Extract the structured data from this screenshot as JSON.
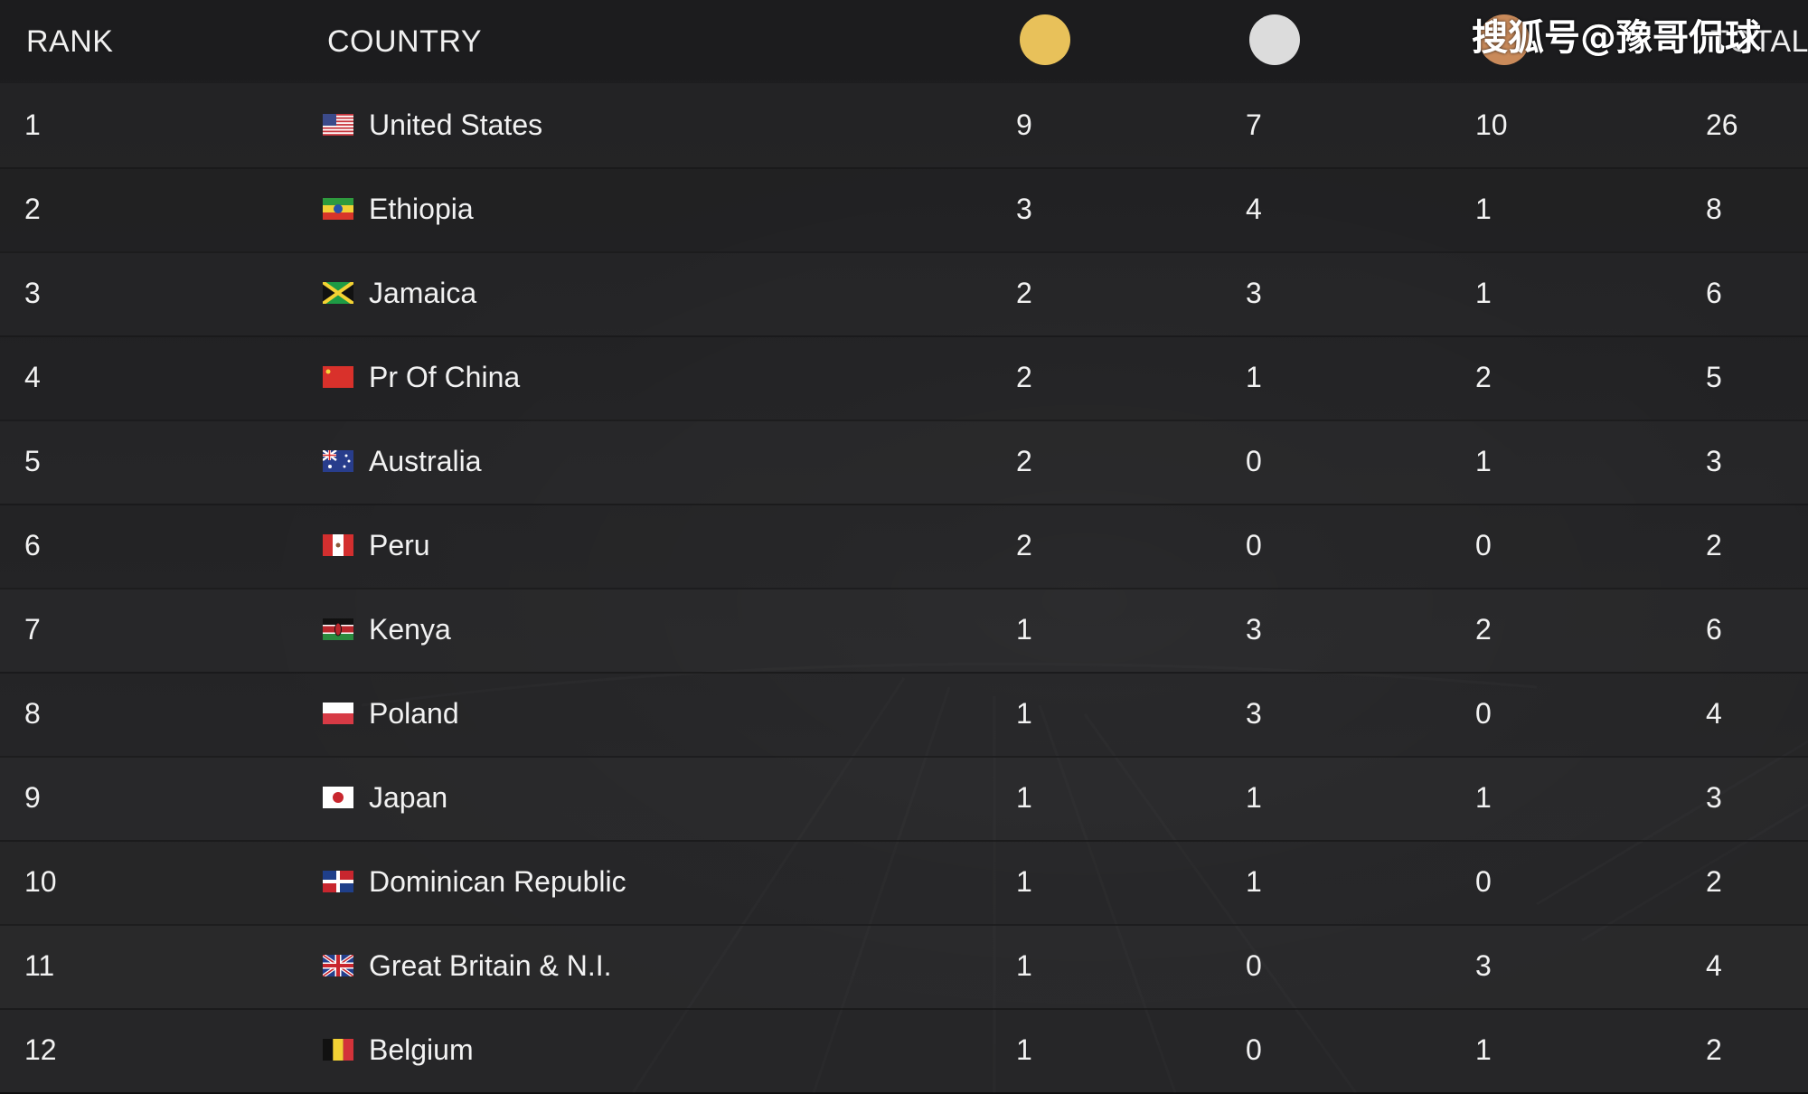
{
  "header": {
    "rank_label": "RANK",
    "country_label": "COUNTRY",
    "total_label": "TOTAL",
    "medals": [
      {
        "name": "gold-medal-icon",
        "color": "#e8c15a"
      },
      {
        "name": "silver-medal-icon",
        "color": "#dcdcdc"
      },
      {
        "name": "bronze-medal-icon",
        "color": "#c98a5a"
      }
    ]
  },
  "watermark": "搜狐号@豫哥侃球",
  "rows": [
    {
      "rank": "1",
      "country": "United States",
      "flag": "us-flag-icon",
      "gold": "9",
      "silver": "7",
      "bronze": "10",
      "total": "26"
    },
    {
      "rank": "2",
      "country": "Ethiopia",
      "flag": "ethiopia-flag-icon",
      "gold": "3",
      "silver": "4",
      "bronze": "1",
      "total": "8"
    },
    {
      "rank": "3",
      "country": "Jamaica",
      "flag": "jamaica-flag-icon",
      "gold": "2",
      "silver": "3",
      "bronze": "1",
      "total": "6"
    },
    {
      "rank": "4",
      "country": "Pr Of China",
      "flag": "china-flag-icon",
      "gold": "2",
      "silver": "1",
      "bronze": "2",
      "total": "5"
    },
    {
      "rank": "5",
      "country": "Australia",
      "flag": "australia-flag-icon",
      "gold": "2",
      "silver": "0",
      "bronze": "1",
      "total": "3"
    },
    {
      "rank": "6",
      "country": "Peru",
      "flag": "peru-flag-icon",
      "gold": "2",
      "silver": "0",
      "bronze": "0",
      "total": "2"
    },
    {
      "rank": "7",
      "country": "Kenya",
      "flag": "kenya-flag-icon",
      "gold": "1",
      "silver": "3",
      "bronze": "2",
      "total": "6"
    },
    {
      "rank": "8",
      "country": "Poland",
      "flag": "poland-flag-icon",
      "gold": "1",
      "silver": "3",
      "bronze": "0",
      "total": "4"
    },
    {
      "rank": "9",
      "country": "Japan",
      "flag": "japan-flag-icon",
      "gold": "1",
      "silver": "1",
      "bronze": "1",
      "total": "3"
    },
    {
      "rank": "10",
      "country": "Dominican Republic",
      "flag": "dominican-republic-flag-icon",
      "gold": "1",
      "silver": "1",
      "bronze": "0",
      "total": "2"
    },
    {
      "rank": "11",
      "country": "Great Britain & N.I.",
      "flag": "great-britain-flag-icon",
      "gold": "1",
      "silver": "0",
      "bronze": "3",
      "total": "4"
    },
    {
      "rank": "12",
      "country": "Belgium",
      "flag": "belgium-flag-icon",
      "gold": "1",
      "silver": "0",
      "bronze": "1",
      "total": "2"
    }
  ]
}
